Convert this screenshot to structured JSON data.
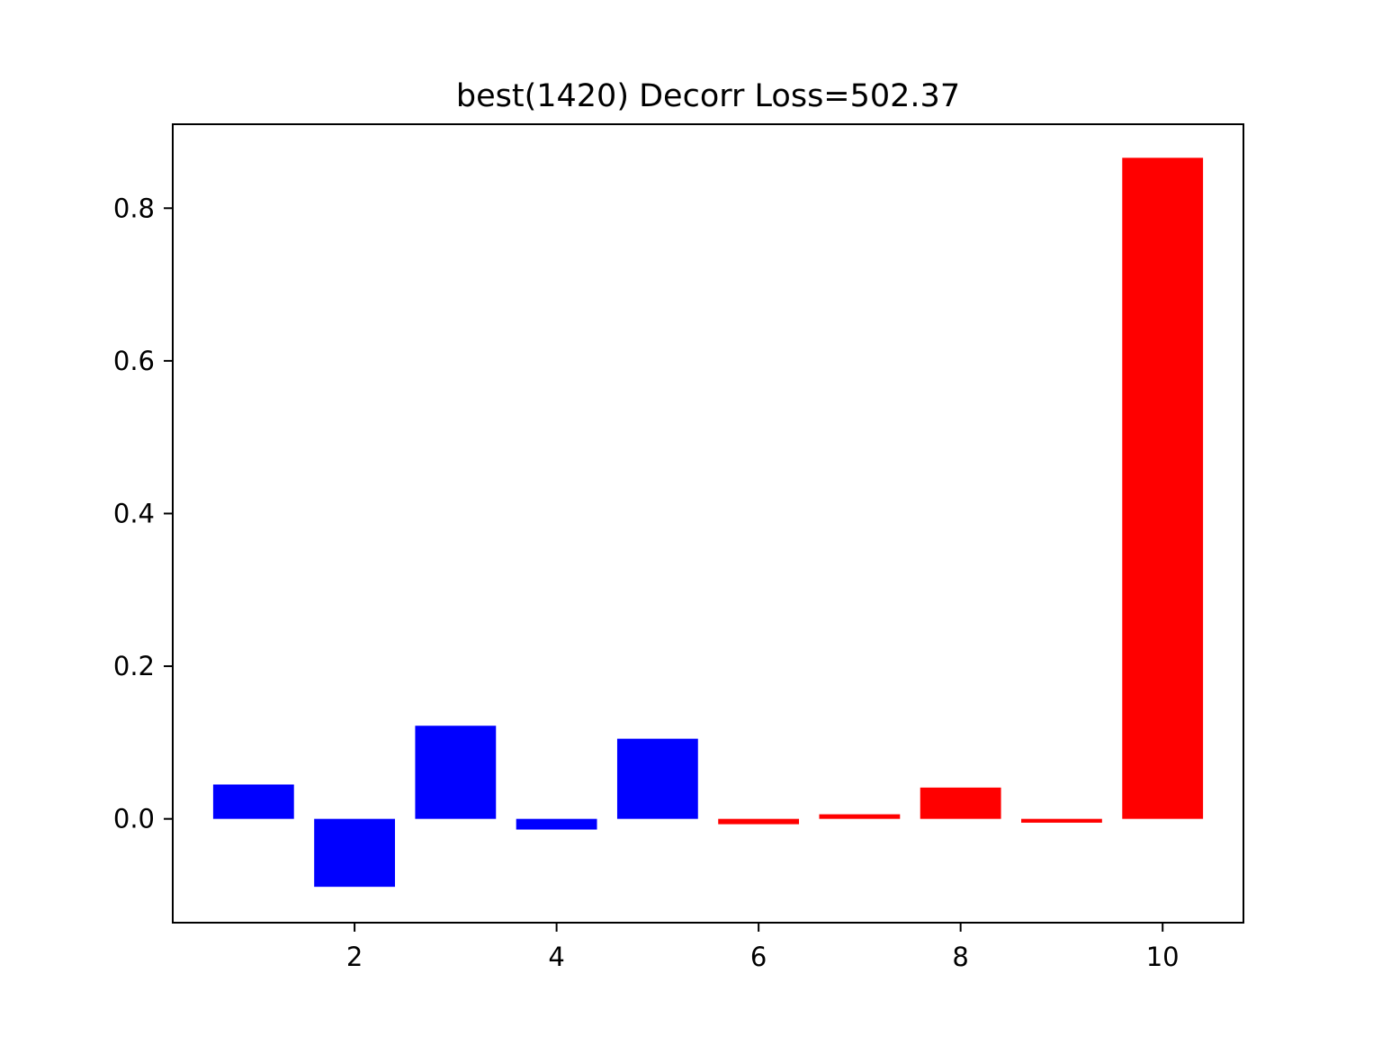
{
  "chart_data": {
    "type": "bar",
    "title": "best(1420) Decorr Loss=502.37",
    "xlabel": "",
    "ylabel": "",
    "x": [
      1,
      2,
      3,
      4,
      5,
      6,
      7,
      8,
      9,
      10
    ],
    "values": [
      0.045,
      -0.089,
      0.122,
      -0.014,
      0.105,
      -0.007,
      0.006,
      0.041,
      -0.005,
      0.866
    ],
    "bar_colors": [
      "#0000ff",
      "#0000ff",
      "#0000ff",
      "#0000ff",
      "#0000ff",
      "#ff0000",
      "#ff0000",
      "#ff0000",
      "#ff0000",
      "#ff0000"
    ],
    "xlim": [
      0.2,
      10.8
    ],
    "ylim": [
      -0.136,
      0.91
    ],
    "xticks": [
      2,
      4,
      6,
      8,
      10
    ],
    "xtick_labels": [
      "2",
      "4",
      "6",
      "8",
      "10"
    ],
    "yticks": [
      0.0,
      0.2,
      0.4,
      0.6,
      0.8
    ],
    "ytick_labels": [
      "0.0",
      "0.2",
      "0.4",
      "0.6",
      "0.8"
    ],
    "grid": false,
    "legend": "none"
  }
}
